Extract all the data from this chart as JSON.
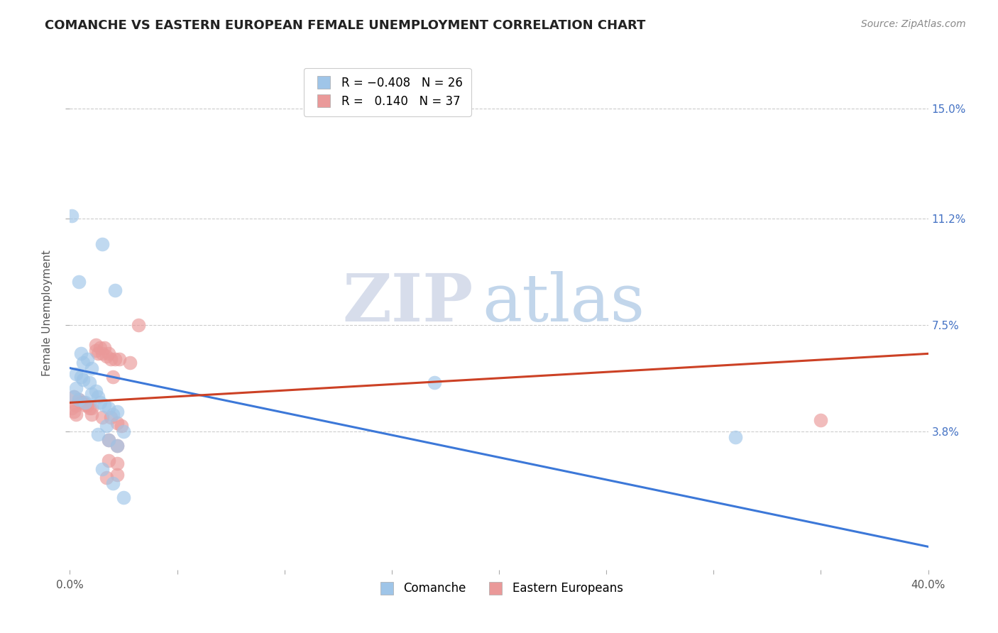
{
  "title": "COMANCHE VS EASTERN EUROPEAN FEMALE UNEMPLOYMENT CORRELATION CHART",
  "source": "Source: ZipAtlas.com",
  "ylabel": "Female Unemployment",
  "ytick_labels": [
    "15.0%",
    "11.2%",
    "7.5%",
    "3.8%"
  ],
  "ytick_values": [
    0.15,
    0.112,
    0.075,
    0.038
  ],
  "xmin": 0.0,
  "xmax": 0.4,
  "ymin": -0.01,
  "ymax": 0.168,
  "comanche_color": "#9fc5e8",
  "eastern_color": "#ea9999",
  "line_comanche_color": "#3c78d8",
  "line_eastern_color": "#cc4125",
  "watermark_zip": "ZIP",
  "watermark_atlas": "atlas",
  "comanche_points": [
    [
      0.001,
      0.113
    ],
    [
      0.015,
      0.103
    ],
    [
      0.004,
      0.09
    ],
    [
      0.021,
      0.087
    ],
    [
      0.005,
      0.065
    ],
    [
      0.008,
      0.063
    ],
    [
      0.006,
      0.062
    ],
    [
      0.01,
      0.06
    ],
    [
      0.003,
      0.058
    ],
    [
      0.005,
      0.057
    ],
    [
      0.006,
      0.056
    ],
    [
      0.009,
      0.055
    ],
    [
      0.003,
      0.053
    ],
    [
      0.012,
      0.052
    ],
    [
      0.01,
      0.051
    ],
    [
      0.013,
      0.05
    ],
    [
      0.002,
      0.05
    ],
    [
      0.004,
      0.049
    ],
    [
      0.007,
      0.048
    ],
    [
      0.014,
      0.048
    ],
    [
      0.016,
      0.047
    ],
    [
      0.018,
      0.046
    ],
    [
      0.022,
      0.045
    ],
    [
      0.02,
      0.044
    ],
    [
      0.017,
      0.04
    ],
    [
      0.025,
      0.038
    ],
    [
      0.013,
      0.037
    ],
    [
      0.018,
      0.035
    ],
    [
      0.022,
      0.033
    ],
    [
      0.015,
      0.025
    ],
    [
      0.02,
      0.02
    ],
    [
      0.025,
      0.015
    ],
    [
      0.17,
      0.055
    ],
    [
      0.31,
      0.036
    ]
  ],
  "eastern_points": [
    [
      0.002,
      0.05
    ],
    [
      0.004,
      0.049
    ],
    [
      0.005,
      0.048
    ],
    [
      0.006,
      0.048
    ],
    [
      0.007,
      0.047
    ],
    [
      0.003,
      0.047
    ],
    [
      0.008,
      0.047
    ],
    [
      0.009,
      0.046
    ],
    [
      0.01,
      0.046
    ],
    [
      0.001,
      0.046
    ],
    [
      0.002,
      0.045
    ],
    [
      0.003,
      0.044
    ],
    [
      0.012,
      0.068
    ],
    [
      0.014,
      0.067
    ],
    [
      0.016,
      0.067
    ],
    [
      0.012,
      0.066
    ],
    [
      0.015,
      0.065
    ],
    [
      0.018,
      0.065
    ],
    [
      0.013,
      0.065
    ],
    [
      0.017,
      0.064
    ],
    [
      0.019,
      0.063
    ],
    [
      0.021,
      0.063
    ],
    [
      0.023,
      0.063
    ],
    [
      0.028,
      0.062
    ],
    [
      0.032,
      0.075
    ],
    [
      0.02,
      0.057
    ],
    [
      0.01,
      0.044
    ],
    [
      0.015,
      0.043
    ],
    [
      0.019,
      0.043
    ],
    [
      0.022,
      0.041
    ],
    [
      0.024,
      0.04
    ],
    [
      0.018,
      0.035
    ],
    [
      0.022,
      0.033
    ],
    [
      0.018,
      0.028
    ],
    [
      0.022,
      0.027
    ],
    [
      0.022,
      0.023
    ],
    [
      0.017,
      0.022
    ],
    [
      0.35,
      0.042
    ]
  ],
  "blue_line_x": [
    0.0,
    0.4
  ],
  "blue_line_y": [
    0.06,
    -0.002
  ],
  "pink_line_x": [
    0.0,
    0.4
  ],
  "pink_line_y": [
    0.048,
    0.065
  ]
}
